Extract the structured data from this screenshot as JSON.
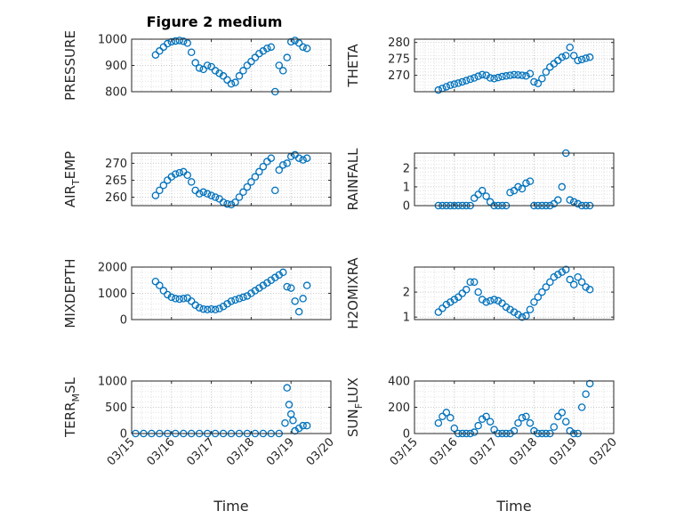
{
  "figure": {
    "title": "Figure 2 medium",
    "xlabel": "Time",
    "x_ticks": [
      "03/15",
      "03/16",
      "03/17",
      "03/18",
      "03/19",
      "03/20"
    ],
    "marker_color": "#0072BD",
    "grid": "dotted"
  },
  "chart_data": [
    {
      "type": "scatter",
      "name": "pressure",
      "ylabel": "PRESSURE",
      "ylim": [
        800,
        1000
      ],
      "yticks": [
        800,
        900,
        1000
      ],
      "x": [
        15.6,
        15.7,
        15.8,
        15.9,
        16.0,
        16.1,
        16.2,
        16.3,
        16.4,
        16.5,
        16.6,
        16.7,
        16.8,
        16.9,
        17.0,
        17.1,
        17.2,
        17.3,
        17.4,
        17.5,
        17.6,
        17.7,
        17.8,
        17.9,
        18.0,
        18.1,
        18.2,
        18.3,
        18.4,
        18.5,
        18.6,
        18.7,
        18.8,
        18.9,
        19.0,
        19.1,
        19.2,
        19.3,
        19.4
      ],
      "y": [
        940,
        955,
        970,
        983,
        990,
        993,
        995,
        992,
        985,
        950,
        910,
        890,
        885,
        900,
        895,
        880,
        870,
        860,
        845,
        830,
        835,
        860,
        880,
        900,
        915,
        930,
        945,
        955,
        965,
        970,
        800,
        900,
        880,
        930,
        990,
        995,
        985,
        970,
        965
      ]
    },
    {
      "type": "scatter",
      "name": "theta",
      "ylabel": "THETA",
      "ylim": [
        265,
        281
      ],
      "yticks": [
        270,
        275,
        280
      ],
      "x": [
        15.6,
        15.7,
        15.8,
        15.9,
        16.0,
        16.1,
        16.2,
        16.3,
        16.4,
        16.5,
        16.6,
        16.7,
        16.8,
        16.9,
        17.0,
        17.1,
        17.2,
        17.3,
        17.4,
        17.5,
        17.6,
        17.7,
        17.8,
        17.9,
        18.0,
        18.1,
        18.2,
        18.3,
        18.4,
        18.5,
        18.6,
        18.7,
        18.8,
        18.9,
        19.0,
        19.1,
        19.2,
        19.3,
        19.4
      ],
      "y": [
        265.5,
        266.0,
        266.5,
        267.0,
        267.3,
        267.6,
        268.0,
        268.4,
        268.8,
        269.2,
        269.7,
        270.2,
        270.0,
        269.2,
        269.0,
        269.3,
        269.6,
        269.8,
        270.0,
        270.2,
        270.1,
        270.0,
        269.8,
        270.5,
        268.0,
        267.5,
        269.0,
        271.0,
        272.5,
        273.5,
        274.5,
        275.5,
        276.0,
        278.5,
        276.0,
        274.5,
        274.8,
        275.2,
        275.5
      ]
    },
    {
      "type": "scatter",
      "name": "air-temp",
      "ylabel": "AIR",
      "ylabel_sub": "T",
      "ylabel_suffix": "EMP",
      "ylim": [
        257.5,
        273
      ],
      "yticks": [
        260,
        265,
        270
      ],
      "x": [
        15.6,
        15.7,
        15.8,
        15.9,
        16.0,
        16.1,
        16.2,
        16.3,
        16.4,
        16.5,
        16.6,
        16.7,
        16.8,
        16.9,
        17.0,
        17.1,
        17.2,
        17.3,
        17.4,
        17.5,
        17.6,
        17.7,
        17.8,
        17.9,
        18.0,
        18.1,
        18.2,
        18.3,
        18.4,
        18.5,
        18.6,
        18.7,
        18.8,
        18.9,
        19.0,
        19.1,
        19.2,
        19.3,
        19.4
      ],
      "y": [
        260.5,
        262.0,
        263.5,
        265.0,
        266.0,
        266.8,
        267.2,
        267.5,
        266.5,
        264.5,
        262.0,
        261.0,
        261.5,
        261.0,
        260.5,
        260.0,
        259.5,
        258.5,
        258.0,
        257.8,
        258.5,
        260.0,
        261.5,
        263.0,
        264.5,
        266.0,
        267.5,
        269.0,
        270.5,
        271.5,
        262.0,
        268.0,
        269.5,
        270.0,
        272.0,
        272.5,
        271.5,
        271.0,
        271.5
      ]
    },
    {
      "type": "scatter",
      "name": "rainfall",
      "ylabel": "RAINFALL",
      "ylim": [
        0,
        2.8
      ],
      "yticks": [
        0,
        1,
        2
      ],
      "x": [
        15.6,
        15.7,
        15.8,
        15.9,
        16.0,
        16.1,
        16.2,
        16.3,
        16.4,
        16.5,
        16.6,
        16.7,
        16.8,
        16.9,
        17.0,
        17.1,
        17.2,
        17.3,
        17.4,
        17.5,
        17.6,
        17.7,
        17.8,
        17.9,
        18.0,
        18.1,
        18.2,
        18.3,
        18.4,
        18.5,
        18.6,
        18.7,
        18.8,
        18.9,
        19.0,
        19.1,
        19.2,
        19.3,
        19.4
      ],
      "y": [
        0,
        0,
        0,
        0,
        0,
        0,
        0,
        0,
        0,
        0.4,
        0.6,
        0.8,
        0.5,
        0.2,
        0,
        0,
        0,
        0,
        0.7,
        0.8,
        1.0,
        0.9,
        1.2,
        1.3,
        0,
        0,
        0,
        0,
        0,
        0.1,
        0.3,
        1.0,
        2.8,
        0.3,
        0.2,
        0.1,
        0,
        0,
        0
      ]
    },
    {
      "type": "scatter",
      "name": "mixdepth",
      "ylabel": "MIXDEPTH",
      "ylim": [
        0,
        2000
      ],
      "yticks": [
        0,
        1000,
        2000
      ],
      "x": [
        15.6,
        15.7,
        15.8,
        15.9,
        16.0,
        16.1,
        16.2,
        16.3,
        16.4,
        16.5,
        16.6,
        16.7,
        16.8,
        16.9,
        17.0,
        17.1,
        17.2,
        17.3,
        17.4,
        17.5,
        17.6,
        17.7,
        17.8,
        17.9,
        18.0,
        18.1,
        18.2,
        18.3,
        18.4,
        18.5,
        18.6,
        18.7,
        18.8,
        18.9,
        19.0,
        19.1,
        19.2,
        19.3,
        19.4
      ],
      "y": [
        1450,
        1300,
        1100,
        950,
        850,
        800,
        780,
        800,
        820,
        700,
        550,
        450,
        400,
        380,
        400,
        380,
        420,
        500,
        600,
        700,
        750,
        800,
        850,
        900,
        1000,
        1100,
        1200,
        1300,
        1400,
        1500,
        1600,
        1700,
        1800,
        1250,
        1200,
        700,
        300,
        800,
        1300
      ]
    },
    {
      "type": "scatter",
      "name": "h2omixra",
      "ylabel": "H2OMIXRA",
      "ylim": [
        0.9,
        3.0
      ],
      "yticks": [
        1,
        2
      ],
      "x": [
        15.6,
        15.7,
        15.8,
        15.9,
        16.0,
        16.1,
        16.2,
        16.3,
        16.4,
        16.5,
        16.6,
        16.7,
        16.8,
        16.9,
        17.0,
        17.1,
        17.2,
        17.3,
        17.4,
        17.5,
        17.6,
        17.7,
        17.8,
        17.9,
        18.0,
        18.1,
        18.2,
        18.3,
        18.4,
        18.5,
        18.6,
        18.7,
        18.8,
        18.9,
        19.0,
        19.1,
        19.2,
        19.3,
        19.4
      ],
      "y": [
        1.2,
        1.35,
        1.5,
        1.6,
        1.7,
        1.8,
        1.95,
        2.1,
        2.4,
        2.4,
        2.0,
        1.7,
        1.6,
        1.65,
        1.7,
        1.65,
        1.55,
        1.4,
        1.3,
        1.2,
        1.1,
        1.0,
        1.05,
        1.3,
        1.6,
        1.8,
        2.0,
        2.2,
        2.4,
        2.6,
        2.7,
        2.8,
        2.9,
        2.5,
        2.3,
        2.6,
        2.4,
        2.2,
        2.1
      ]
    },
    {
      "type": "scatter",
      "name": "terrmsl",
      "ylabel": "TERR",
      "ylabel_sub": "M",
      "ylabel_suffix": "SL",
      "ylim": [
        0,
        1000
      ],
      "yticks": [
        0,
        500,
        1000
      ],
      "x": [
        15.1,
        15.3,
        15.5,
        15.7,
        15.9,
        16.1,
        16.3,
        16.5,
        16.7,
        16.9,
        17.1,
        17.3,
        17.5,
        17.7,
        17.9,
        18.1,
        18.3,
        18.5,
        18.7,
        18.85,
        18.9,
        18.95,
        19.0,
        19.05,
        19.1,
        19.2,
        19.3,
        19.4
      ],
      "y": [
        0,
        0,
        0,
        0,
        0,
        0,
        0,
        0,
        0,
        0,
        0,
        0,
        0,
        0,
        0,
        0,
        0,
        0,
        0,
        200,
        870,
        550,
        370,
        250,
        50,
        100,
        150,
        150
      ]
    },
    {
      "type": "scatter",
      "name": "sunflux",
      "ylabel": "SUN",
      "ylabel_sub": "F",
      "ylabel_suffix": "LUX",
      "ylim": [
        0,
        400
      ],
      "yticks": [
        0,
        200,
        400
      ],
      "x": [
        15.6,
        15.7,
        15.8,
        15.9,
        16.0,
        16.1,
        16.2,
        16.3,
        16.4,
        16.5,
        16.6,
        16.7,
        16.8,
        16.9,
        17.0,
        17.1,
        17.2,
        17.3,
        17.4,
        17.5,
        17.6,
        17.7,
        17.8,
        17.9,
        18.0,
        18.1,
        18.2,
        18.3,
        18.4,
        18.5,
        18.6,
        18.7,
        18.8,
        18.9,
        19.0,
        19.1,
        19.2,
        19.3,
        19.4
      ],
      "y": [
        80,
        130,
        160,
        120,
        40,
        0,
        0,
        0,
        0,
        10,
        60,
        110,
        130,
        90,
        30,
        0,
        0,
        0,
        0,
        20,
        80,
        120,
        130,
        80,
        20,
        0,
        0,
        0,
        0,
        50,
        130,
        160,
        90,
        20,
        0,
        0,
        200,
        300,
        380
      ]
    }
  ]
}
